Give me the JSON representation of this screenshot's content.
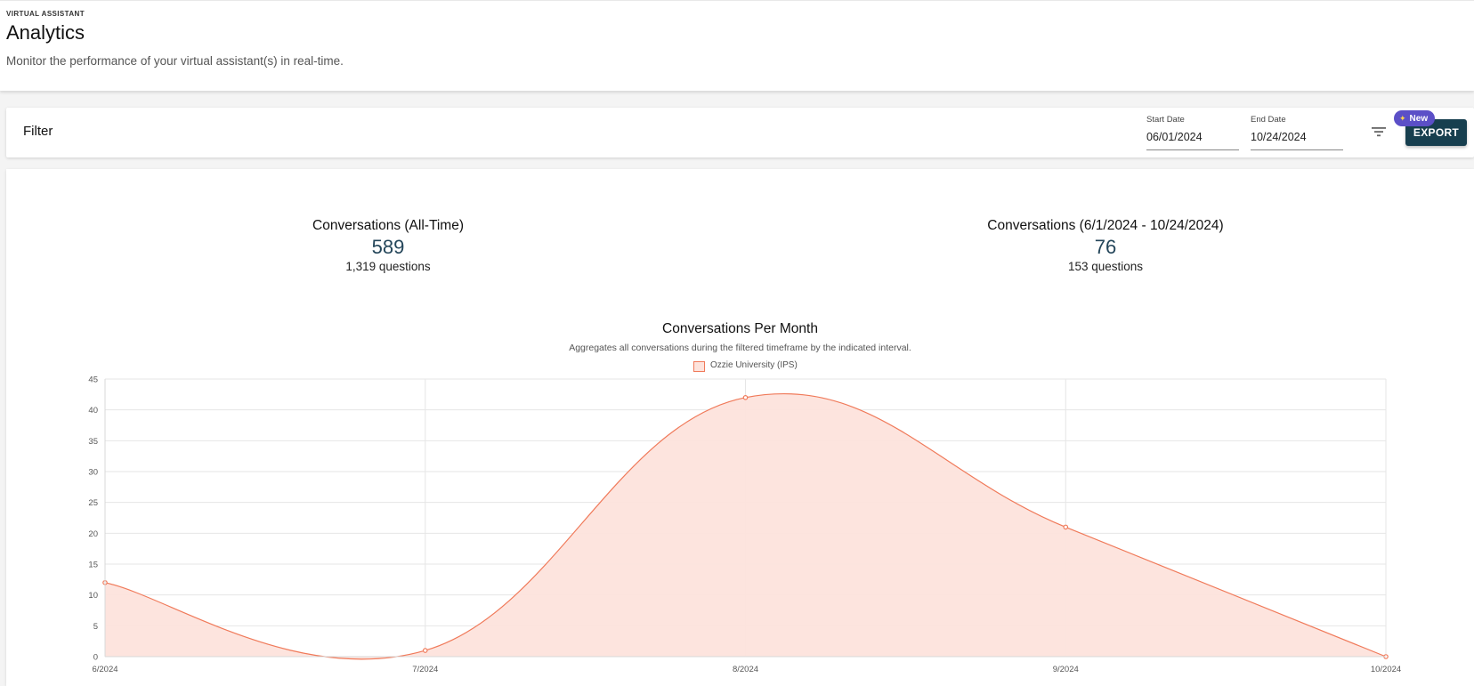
{
  "header": {
    "eyebrow": "VIRTUAL ASSISTANT",
    "title": "Analytics",
    "subtitle": "Monitor the performance of your virtual assistant(s) in real-time."
  },
  "filter": {
    "label": "Filter",
    "start_date": {
      "label": "Start Date",
      "value": "06/01/2024"
    },
    "end_date": {
      "label": "End Date",
      "value": "10/24/2024"
    },
    "filter_icon": "filter-list-icon",
    "new_badge": "New",
    "export_label": "EXPORT"
  },
  "stats": [
    {
      "title": "Conversations (All-Time)",
      "count": "589",
      "questions": "1,319 questions"
    },
    {
      "title": "Conversations (6/1/2024 - 10/24/2024)",
      "count": "76",
      "questions": "153 questions"
    }
  ],
  "colors": {
    "accent": "#173f4f",
    "badge": "#5b4fc7",
    "series_line": "#f07a5a",
    "series_fill": "#fde3dc"
  },
  "chart_data": {
    "type": "area",
    "title": "Conversations Per Month",
    "subtitle": "Aggregates all conversations during the filtered timeframe by the indicated interval.",
    "categories": [
      "6/2024",
      "7/2024",
      "8/2024",
      "9/2024",
      "10/2024"
    ],
    "series": [
      {
        "name": "Ozzie University (IPS)",
        "values": [
          12,
          1,
          42,
          21,
          0
        ]
      }
    ],
    "ylim": [
      0,
      45
    ],
    "yticks": [
      0,
      5,
      10,
      15,
      20,
      25,
      30,
      35,
      40,
      45
    ],
    "grid": true,
    "legend": "top-center"
  }
}
